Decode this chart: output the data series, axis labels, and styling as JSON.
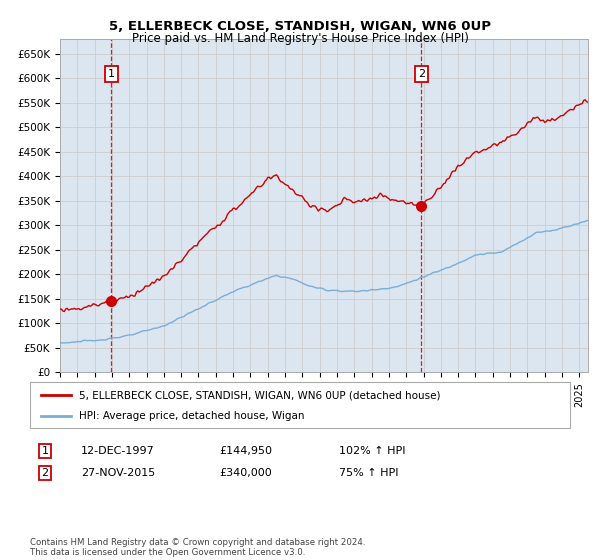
{
  "title": "5, ELLERBECK CLOSE, STANDISH, WIGAN, WN6 0UP",
  "subtitle": "Price paid vs. HM Land Registry's House Price Index (HPI)",
  "background_color": "#ffffff",
  "grid_color": "#cccccc",
  "plot_bg_color": "#dce6f1",
  "sale1_price": 144950,
  "sale1_hpi_pct": "102% ↑ HPI",
  "sale1_date_str": "12-DEC-1997",
  "sale2_price": 340000,
  "sale2_hpi_pct": "75% ↑ HPI",
  "sale2_date_str": "27-NOV-2015",
  "red_line_color": "#cc0000",
  "blue_line_color": "#7aaed6",
  "dashed_color": "#cc0000",
  "marker_color": "#cc0000",
  "legend_label1": "5, ELLERBECK CLOSE, STANDISH, WIGAN, WN6 0UP (detached house)",
  "legend_label2": "HPI: Average price, detached house, Wigan",
  "footer": "Contains HM Land Registry data © Crown copyright and database right 2024.\nThis data is licensed under the Open Government Licence v3.0.",
  "ylim": [
    0,
    680000
  ],
  "yticks": [
    0,
    50000,
    100000,
    150000,
    200000,
    250000,
    300000,
    350000,
    400000,
    450000,
    500000,
    550000,
    600000,
    650000
  ],
  "xstart": 1995.0,
  "xend": 2025.5,
  "t_sale1": 1997.958,
  "t_sale2": 2015.875
}
